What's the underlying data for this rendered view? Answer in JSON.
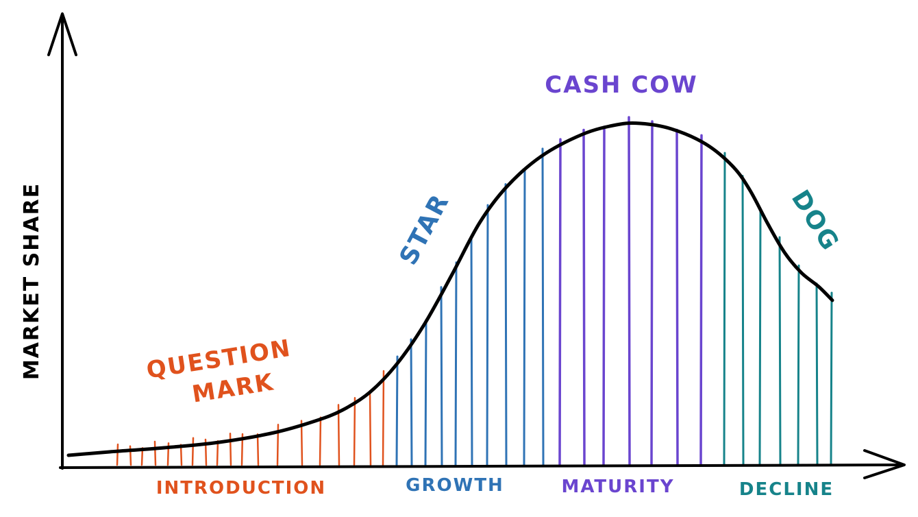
{
  "axes": {
    "y_label": "MARKET SHARE"
  },
  "stages": [
    {
      "key": "introduction",
      "label": "INTRODUCTION",
      "color": "#e0521d"
    },
    {
      "key": "growth",
      "label": "GROWTH",
      "color": "#2f73b5"
    },
    {
      "key": "maturity",
      "label": "MATURITY",
      "color": "#6a45cf"
    },
    {
      "key": "decline",
      "label": "DECLINE",
      "color": "#16838a"
    }
  ],
  "categories": {
    "question_mark": {
      "lines": [
        "QUESTION",
        "MARK"
      ],
      "color": "#e0521d"
    },
    "star": {
      "label": "STAR",
      "color": "#2f73b5"
    },
    "cash_cow": {
      "label": "CASH COW",
      "color": "#6a45cf"
    },
    "dog": {
      "label": "DOG",
      "color": "#16838a"
    }
  },
  "curve_color": "#000000"
}
